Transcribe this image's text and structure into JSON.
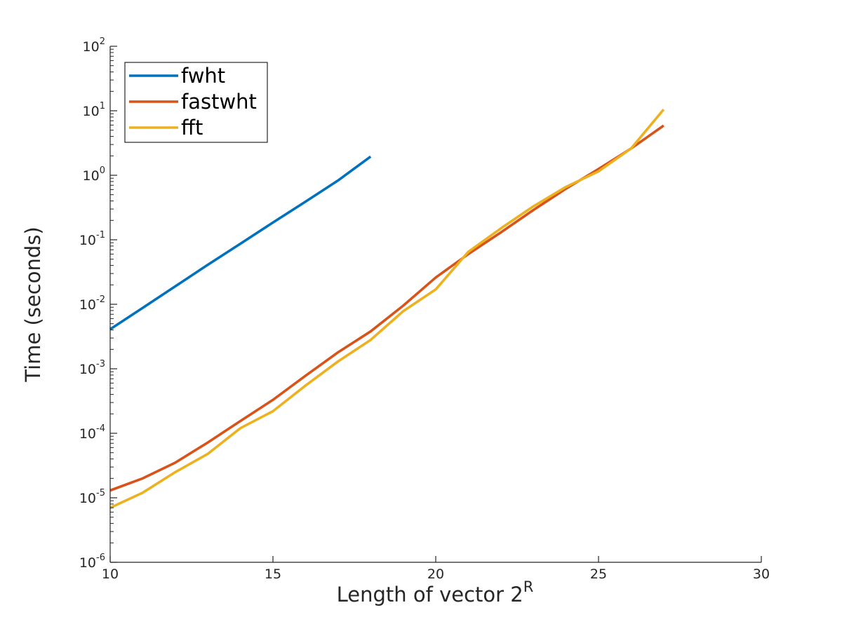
{
  "chart_data": {
    "type": "line",
    "xlabel": "Length of vector 2",
    "xlabel_superscript": "R",
    "ylabel": "Time (seconds)",
    "xlim": [
      10,
      30
    ],
    "ylim": [
      1e-06,
      100
    ],
    "yscale": "log",
    "grid": false,
    "legend_position": "top-left",
    "x_ticks": [
      "10",
      "15",
      "20",
      "25",
      "30"
    ],
    "y_ticks": [
      {
        "base": "10",
        "exp": "-6"
      },
      {
        "base": "10",
        "exp": "-5"
      },
      {
        "base": "10",
        "exp": "-4"
      },
      {
        "base": "10",
        "exp": "-3"
      },
      {
        "base": "10",
        "exp": "-2"
      },
      {
        "base": "10",
        "exp": "-1"
      },
      {
        "base": "10",
        "exp": "0"
      },
      {
        "base": "10",
        "exp": "1"
      },
      {
        "base": "10",
        "exp": "2"
      }
    ],
    "series": [
      {
        "name": "fwht",
        "color": "#0072BD",
        "x": [
          10,
          11,
          12,
          13,
          14,
          15,
          16,
          17,
          18
        ],
        "y": [
          0.0041,
          0.0088,
          0.019,
          0.041,
          0.087,
          0.185,
          0.39,
          0.83,
          1.95
        ]
      },
      {
        "name": "fastwht",
        "color": "#D95319",
        "x": [
          10,
          11,
          12,
          13,
          14,
          15,
          16,
          17,
          18,
          19,
          20,
          21,
          22,
          23,
          24,
          25,
          26,
          27
        ],
        "y": [
          1.3e-05,
          2e-05,
          3.5e-05,
          7.2e-05,
          0.000155,
          0.00033,
          0.00078,
          0.0018,
          0.0038,
          0.0095,
          0.026,
          0.06,
          0.13,
          0.29,
          0.62,
          1.25,
          2.6,
          5.9
        ]
      },
      {
        "name": "fft",
        "color": "#EDB120",
        "x": [
          10,
          11,
          12,
          13,
          14,
          15,
          16,
          17,
          18,
          19,
          20,
          21,
          22,
          23,
          24,
          25,
          26,
          27
        ],
        "y": [
          7e-06,
          1.2e-05,
          2.5e-05,
          4.8e-05,
          0.00012,
          0.00022,
          0.00055,
          0.0013,
          0.0028,
          0.0078,
          0.017,
          0.065,
          0.15,
          0.33,
          0.66,
          1.15,
          2.6,
          10.5
        ]
      }
    ]
  }
}
